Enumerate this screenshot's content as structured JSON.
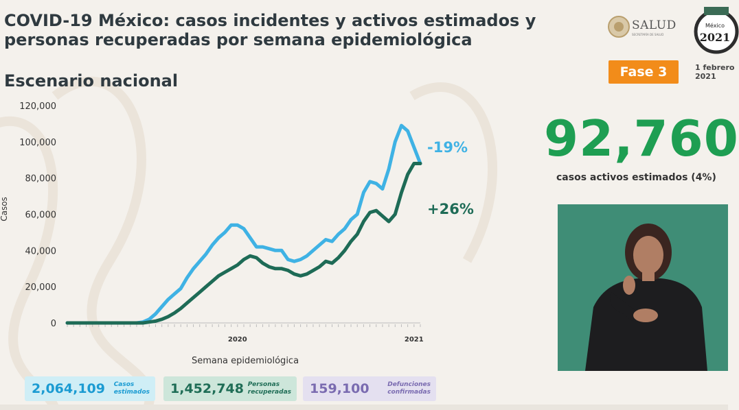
{
  "header": {
    "title": "COVID-19 México: casos incidentes y activos estimados y personas recuperadas por semana epidemiológica",
    "subtitle": "Escenario nacional",
    "logo_salud": "SALUD",
    "logo_salud_sub": "SECRETARÍA DE SALUD",
    "logo_2021": "México 2021",
    "phase_badge": "Fase 3",
    "date": "1 febrero\n2021"
  },
  "highlight": {
    "active_cases": "92,760",
    "active_caption": "casos activos estimados (4%)"
  },
  "stats": [
    {
      "value": "2,064,109",
      "label": "Casos\nestimados"
    },
    {
      "value": "1,452,748",
      "label": "Personas\nrecuperadas"
    },
    {
      "value": "159,100",
      "label": "Defunciones\nconfirmadas"
    }
  ],
  "colors": {
    "estimated": "#3fb2e4",
    "active": "#1e6b56",
    "pct_green": "#1e9e52",
    "badge": "#f28c1a"
  },
  "chart_data": {
    "type": "line",
    "xlabel": "Semana epidemiológica",
    "ylabel": "Casos",
    "ylim": [
      0,
      120000
    ],
    "yticks": [
      0,
      20000,
      40000,
      60000,
      80000,
      100000,
      120000
    ],
    "ytick_labels": [
      "0",
      "20,000",
      "40,000",
      "60,000",
      "80,000",
      "100,000",
      "120,000"
    ],
    "year_labels": [
      {
        "label": "2020",
        "week": 27
      },
      {
        "label": "2021",
        "week": 55
      }
    ],
    "weeks": 57,
    "series": [
      {
        "key": "estimated",
        "annotation": "-19%",
        "values": [
          0,
          0,
          0,
          0,
          0,
          0,
          0,
          0,
          0,
          0,
          0,
          0,
          500,
          2000,
          5000,
          9000,
          13000,
          16000,
          19000,
          25000,
          30000,
          34000,
          38000,
          43000,
          47000,
          50000,
          54000,
          54000,
          52000,
          47000,
          42000,
          42000,
          41000,
          40000,
          40000,
          35000,
          34000,
          35000,
          37000,
          40000,
          43000,
          46000,
          45000,
          49000,
          52000,
          57000,
          60000,
          72000,
          78000,
          77000,
          74000,
          85000,
          100000,
          109000,
          106000,
          97000,
          88000
        ]
      },
      {
        "key": "active",
        "annotation": "+26%",
        "values": [
          0,
          0,
          0,
          0,
          0,
          0,
          0,
          0,
          0,
          0,
          0,
          0,
          0,
          500,
          1000,
          2000,
          3500,
          5500,
          8000,
          11000,
          14000,
          17000,
          20000,
          23000,
          26000,
          28000,
          30000,
          32000,
          35000,
          37000,
          36000,
          33000,
          31000,
          30000,
          30000,
          29000,
          27000,
          26000,
          27000,
          29000,
          31000,
          34000,
          33000,
          36000,
          40000,
          45000,
          49000,
          56000,
          61000,
          62000,
          59000,
          56000,
          60000,
          72000,
          82000,
          88000,
          88000
        ]
      }
    ]
  }
}
